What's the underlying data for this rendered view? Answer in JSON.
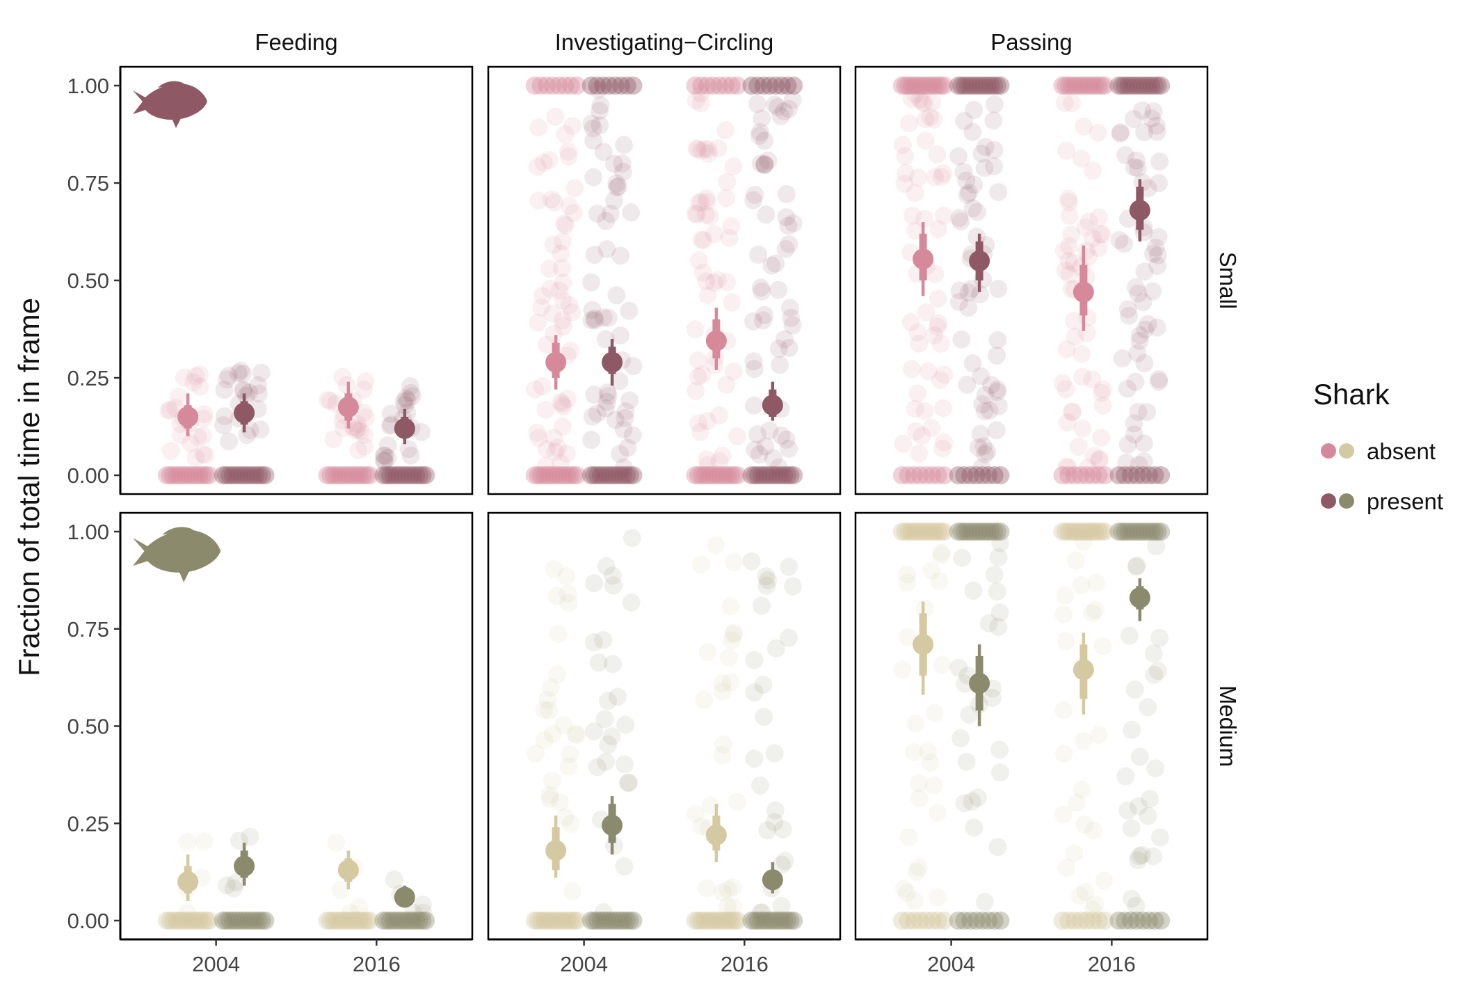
{
  "chart_data": {
    "type": "scatter",
    "ylabel": "Fraction of total time in frame",
    "xlabel": "",
    "x_categories": [
      "2004",
      "2016"
    ],
    "ylim": [
      0,
      1
    ],
    "y_ticks": [
      "0.00",
      "0.25",
      "0.50",
      "0.75",
      "1.00"
    ],
    "grid": false,
    "columns": [
      "Feeding",
      "Investigating−Circling",
      "Passing"
    ],
    "rows": [
      "Small",
      "Medium"
    ],
    "legend": {
      "title": "Shark",
      "position": "right",
      "items": [
        {
          "label": "absent",
          "colors": [
            "#d6899a",
            "#d4c9a0"
          ]
        },
        {
          "label": "present",
          "colors": [
            "#8e5865",
            "#8c8a6c"
          ]
        }
      ]
    },
    "colors": {
      "Small": {
        "absent": "#d6899a",
        "present": "#8e5865"
      },
      "Medium": {
        "absent": "#d4c9a0",
        "present": "#8c8a6c"
      }
    },
    "icons": {
      "Small": "fish-silhouette-icon",
      "Medium": "fish-silhouette-icon"
    },
    "estimates": [
      {
        "row": "Small",
        "column": "Feeding",
        "year": "2004",
        "shark": "absent",
        "mean": 0.15,
        "inner": [
          0.12,
          0.18
        ],
        "outer": [
          0.1,
          0.21
        ]
      },
      {
        "row": "Small",
        "column": "Feeding",
        "year": "2004",
        "shark": "present",
        "mean": 0.16,
        "inner": [
          0.13,
          0.19
        ],
        "outer": [
          0.11,
          0.21
        ]
      },
      {
        "row": "Small",
        "column": "Feeding",
        "year": "2016",
        "shark": "absent",
        "mean": 0.175,
        "inner": [
          0.14,
          0.21
        ],
        "outer": [
          0.12,
          0.24
        ]
      },
      {
        "row": "Small",
        "column": "Feeding",
        "year": "2016",
        "shark": "present",
        "mean": 0.12,
        "inner": [
          0.1,
          0.15
        ],
        "outer": [
          0.08,
          0.17
        ]
      },
      {
        "row": "Small",
        "column": "Investigating−Circling",
        "year": "2004",
        "shark": "absent",
        "mean": 0.29,
        "inner": [
          0.25,
          0.34
        ],
        "outer": [
          0.22,
          0.36
        ]
      },
      {
        "row": "Small",
        "column": "Investigating−Circling",
        "year": "2004",
        "shark": "present",
        "mean": 0.29,
        "inner": [
          0.26,
          0.33
        ],
        "outer": [
          0.23,
          0.35
        ]
      },
      {
        "row": "Small",
        "column": "Investigating−Circling",
        "year": "2016",
        "shark": "absent",
        "mean": 0.345,
        "inner": [
          0.3,
          0.4
        ],
        "outer": [
          0.27,
          0.43
        ]
      },
      {
        "row": "Small",
        "column": "Investigating−Circling",
        "year": "2016",
        "shark": "present",
        "mean": 0.18,
        "inner": [
          0.15,
          0.22
        ],
        "outer": [
          0.14,
          0.24
        ]
      },
      {
        "row": "Small",
        "column": "Passing",
        "year": "2004",
        "shark": "absent",
        "mean": 0.555,
        "inner": [
          0.5,
          0.62
        ],
        "outer": [
          0.46,
          0.65
        ]
      },
      {
        "row": "Small",
        "column": "Passing",
        "year": "2004",
        "shark": "present",
        "mean": 0.55,
        "inner": [
          0.5,
          0.6
        ],
        "outer": [
          0.47,
          0.62
        ]
      },
      {
        "row": "Small",
        "column": "Passing",
        "year": "2016",
        "shark": "absent",
        "mean": 0.47,
        "inner": [
          0.41,
          0.54
        ],
        "outer": [
          0.37,
          0.59
        ]
      },
      {
        "row": "Small",
        "column": "Passing",
        "year": "2016",
        "shark": "present",
        "mean": 0.68,
        "inner": [
          0.63,
          0.74
        ],
        "outer": [
          0.6,
          0.76
        ]
      },
      {
        "row": "Medium",
        "column": "Feeding",
        "year": "2004",
        "shark": "absent",
        "mean": 0.1,
        "inner": [
          0.07,
          0.14
        ],
        "outer": [
          0.05,
          0.17
        ]
      },
      {
        "row": "Medium",
        "column": "Feeding",
        "year": "2004",
        "shark": "present",
        "mean": 0.14,
        "inner": [
          0.11,
          0.18
        ],
        "outer": [
          0.09,
          0.2
        ]
      },
      {
        "row": "Medium",
        "column": "Feeding",
        "year": "2016",
        "shark": "absent",
        "mean": 0.13,
        "inner": [
          0.1,
          0.16
        ],
        "outer": [
          0.08,
          0.18
        ]
      },
      {
        "row": "Medium",
        "column": "Feeding",
        "year": "2016",
        "shark": "present",
        "mean": 0.06,
        "inner": [
          0.045,
          0.08
        ],
        "outer": [
          0.035,
          0.09
        ]
      },
      {
        "row": "Medium",
        "column": "Investigating−Circling",
        "year": "2004",
        "shark": "absent",
        "mean": 0.18,
        "inner": [
          0.13,
          0.24
        ],
        "outer": [
          0.11,
          0.27
        ]
      },
      {
        "row": "Medium",
        "column": "Investigating−Circling",
        "year": "2004",
        "shark": "present",
        "mean": 0.245,
        "inner": [
          0.2,
          0.3
        ],
        "outer": [
          0.17,
          0.32
        ]
      },
      {
        "row": "Medium",
        "column": "Investigating−Circling",
        "year": "2016",
        "shark": "absent",
        "mean": 0.22,
        "inner": [
          0.18,
          0.27
        ],
        "outer": [
          0.15,
          0.3
        ]
      },
      {
        "row": "Medium",
        "column": "Investigating−Circling",
        "year": "2016",
        "shark": "present",
        "mean": 0.105,
        "inner": [
          0.08,
          0.13
        ],
        "outer": [
          0.07,
          0.15
        ]
      },
      {
        "row": "Medium",
        "column": "Passing",
        "year": "2004",
        "shark": "absent",
        "mean": 0.71,
        "inner": [
          0.63,
          0.79
        ],
        "outer": [
          0.58,
          0.82
        ]
      },
      {
        "row": "Medium",
        "column": "Passing",
        "year": "2004",
        "shark": "present",
        "mean": 0.61,
        "inner": [
          0.54,
          0.68
        ],
        "outer": [
          0.5,
          0.71
        ]
      },
      {
        "row": "Medium",
        "column": "Passing",
        "year": "2016",
        "shark": "absent",
        "mean": 0.645,
        "inner": [
          0.57,
          0.71
        ],
        "outer": [
          0.53,
          0.74
        ]
      },
      {
        "row": "Medium",
        "column": "Passing",
        "year": "2016",
        "shark": "present",
        "mean": 0.83,
        "inner": [
          0.8,
          0.86
        ],
        "outer": [
          0.77,
          0.88
        ]
      }
    ]
  }
}
